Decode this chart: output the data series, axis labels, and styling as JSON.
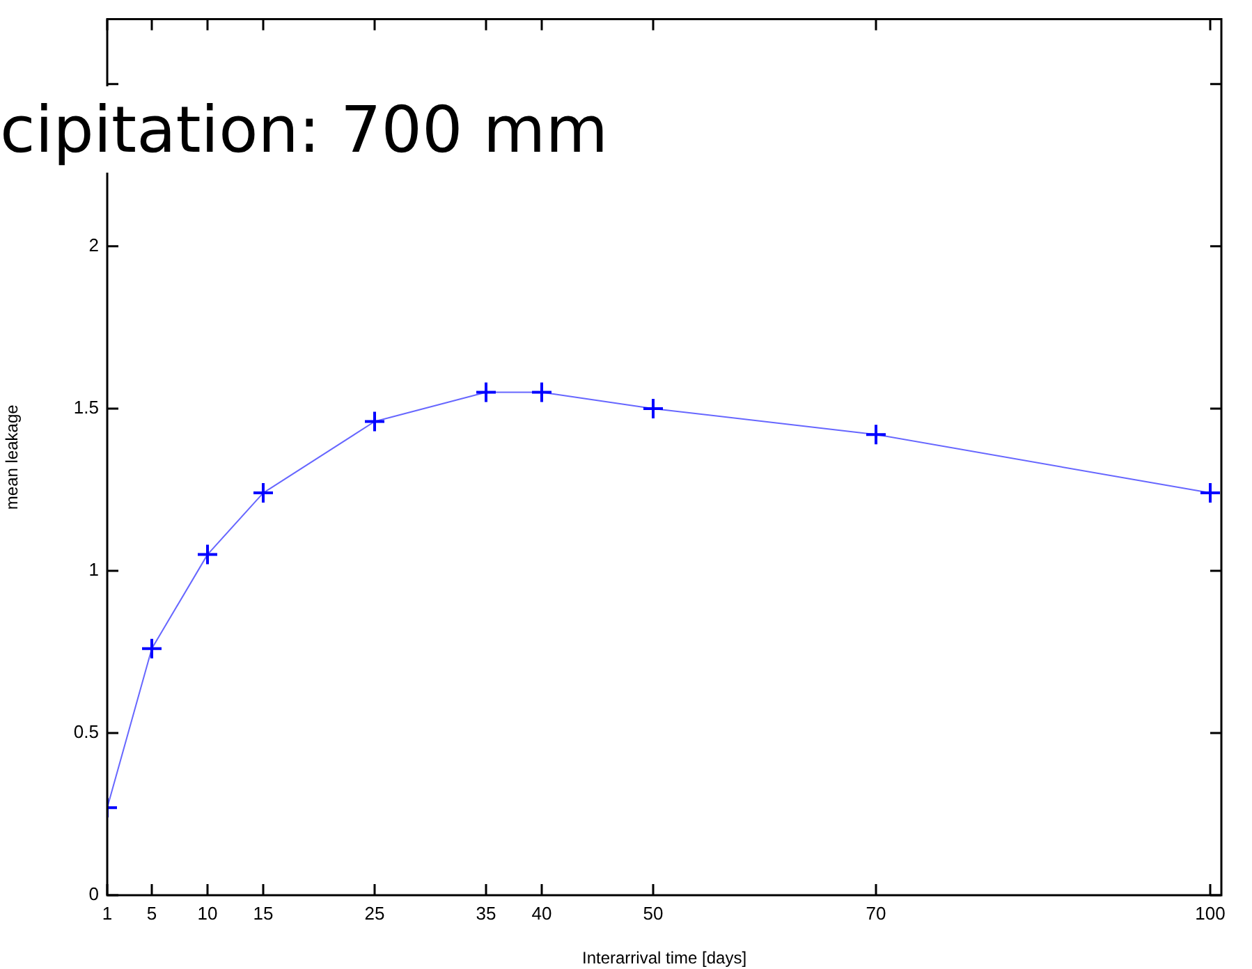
{
  "chart_data": {
    "type": "line",
    "title": "cipitation: 700 mm",
    "xlabel": "Interarrival time [days]",
    "ylabel": "mean leakage",
    "x": [
      1,
      5,
      10,
      15,
      25,
      35,
      40,
      50,
      70,
      100
    ],
    "series": [
      {
        "color": "#0000ff",
        "values": [
          0.27,
          0.76,
          1.05,
          1.24,
          1.46,
          1.55,
          1.55,
          1.5,
          1.42,
          1.24
        ]
      }
    ],
    "xlim": [
      1,
      101
    ],
    "xticks": [
      1,
      5,
      10,
      15,
      25,
      35,
      40,
      50,
      70,
      100
    ],
    "ylim": [
      0,
      2.7
    ],
    "yticks": [
      0,
      0.5,
      1,
      1.5,
      2,
      {
        "value": 2.5,
        "label": null
      }
    ],
    "grid": false,
    "legend": false,
    "marker": "cross",
    "line_style": "solid"
  }
}
